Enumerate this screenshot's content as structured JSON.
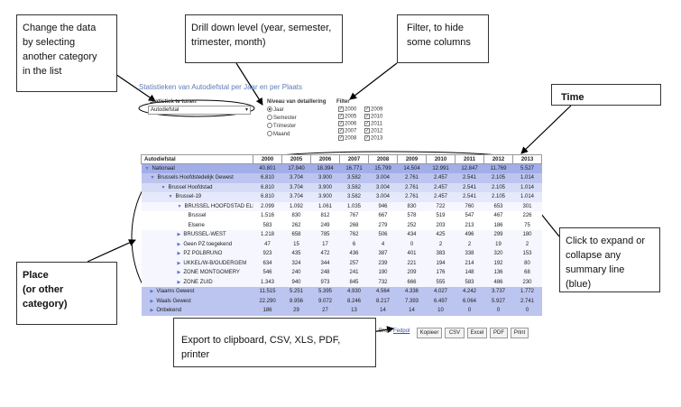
{
  "callouts": {
    "change_data": [
      "Change the data",
      "by selecting",
      "another category",
      "in the list"
    ],
    "drill_down": [
      "Drill down level (year, semester,",
      "trimester, month)"
    ],
    "filter": [
      "Filter, to hide",
      "some columns"
    ],
    "time": "Time",
    "expand": [
      "Click to expand or",
      "collapse any",
      "summary line",
      "(blue)"
    ],
    "place": [
      "Place",
      "(or other",
      "category)"
    ],
    "export": "Export to clipboard, CSV, XLS, PDF, printer"
  },
  "app": {
    "title": "Statistieken van Autodiefstal per Jaar en per Plaats",
    "stat_label": "Statistiek te tonen",
    "stat_value": "Autodiefstal",
    "level_label": "Niveau van detaillering",
    "levels": [
      {
        "label": "Jaar",
        "checked": true
      },
      {
        "label": "Semester",
        "checked": false
      },
      {
        "label": "Trimester",
        "checked": false
      },
      {
        "label": "Maand",
        "checked": false
      }
    ],
    "filter_label": "Filter",
    "filters": [
      {
        "year": "2000",
        "checked": true
      },
      {
        "year": "2009",
        "checked": true
      },
      {
        "year": "2005",
        "checked": true
      },
      {
        "year": "2010",
        "checked": true
      },
      {
        "year": "2006",
        "checked": true
      },
      {
        "year": "2011",
        "checked": true
      },
      {
        "year": "2007",
        "checked": true
      },
      {
        "year": "2012",
        "checked": true
      },
      {
        "year": "2008",
        "checked": true
      },
      {
        "year": "2013",
        "checked": true
      }
    ]
  },
  "table": {
    "header_first": "Autodiefstal",
    "years": [
      "2000",
      "2005",
      "2006",
      "2007",
      "2008",
      "2009",
      "2010",
      "2011",
      "2012",
      "2013"
    ],
    "rows": [
      {
        "label": "Nationaal",
        "level": 0,
        "icon": "collapse",
        "values": [
          "40.801",
          "17.940",
          "18.394",
          "16.771",
          "15.799",
          "14.504",
          "12.991",
          "12.847",
          "11.769",
          "5.527"
        ]
      },
      {
        "label": "Brussels Hoofdstedelijk Gewest",
        "level": 1,
        "icon": "collapse",
        "values": [
          "6.810",
          "3.704",
          "3.900",
          "3.582",
          "3.004",
          "2.761",
          "2.457",
          "2.541",
          "2.105",
          "1.014"
        ]
      },
      {
        "label": "Brussel Hoofdstad",
        "level": 2,
        "icon": "collapse",
        "values": [
          "6.810",
          "3.704",
          "3.900",
          "3.582",
          "3.004",
          "2.761",
          "2.457",
          "2.541",
          "2.105",
          "1.014"
        ]
      },
      {
        "label": "Brussel-19",
        "level": 3,
        "icon": "collapse",
        "values": [
          "6.810",
          "3.704",
          "3.900",
          "3.582",
          "3.004",
          "2.761",
          "2.457",
          "2.541",
          "2.105",
          "1.014"
        ]
      },
      {
        "label": "BRUSSEL HOOFDSTAD ELSENE",
        "level": 4,
        "icon": "collapse",
        "values": [
          "2.099",
          "1.092",
          "1.061",
          "1.035",
          "946",
          "830",
          "722",
          "760",
          "653",
          "301"
        ]
      },
      {
        "label": "Brussel",
        "level": 5,
        "icon": "",
        "values": [
          "1.516",
          "830",
          "812",
          "767",
          "667",
          "578",
          "519",
          "547",
          "467",
          "226"
        ]
      },
      {
        "label": "Elsene",
        "level": 5,
        "icon": "",
        "values": [
          "583",
          "262",
          "249",
          "268",
          "279",
          "252",
          "203",
          "213",
          "186",
          "75"
        ]
      },
      {
        "label": "BRUSSEL-WEST",
        "level": 4,
        "icon": "expand",
        "values": [
          "1.218",
          "658",
          "785",
          "762",
          "506",
          "434",
          "425",
          "496",
          "299",
          "180"
        ]
      },
      {
        "label": "Geen PZ toegekend",
        "level": 4,
        "icon": "expand",
        "values": [
          "47",
          "15",
          "17",
          "6",
          "4",
          "0",
          "2",
          "2",
          "19",
          "2"
        ]
      },
      {
        "label": "PZ POLBRUNO",
        "level": 4,
        "icon": "expand",
        "values": [
          "923",
          "435",
          "472",
          "436",
          "387",
          "401",
          "383",
          "338",
          "320",
          "153"
        ]
      },
      {
        "label": "UKKEL/W-B/OUDERGEM",
        "level": 4,
        "icon": "expand",
        "values": [
          "634",
          "324",
          "344",
          "257",
          "239",
          "221",
          "194",
          "214",
          "192",
          "80"
        ]
      },
      {
        "label": "ZONE MONTGOMERY",
        "level": 4,
        "icon": "expand",
        "values": [
          "546",
          "240",
          "248",
          "241",
          "190",
          "209",
          "176",
          "148",
          "136",
          "68"
        ]
      },
      {
        "label": "ZONE ZUID",
        "level": 4,
        "icon": "expand",
        "values": [
          "1.343",
          "940",
          "973",
          "845",
          "732",
          "666",
          "555",
          "583",
          "486",
          "230"
        ]
      },
      {
        "label": "Vlaams Gewest",
        "level": 1,
        "icon": "expand",
        "values": [
          "11.515",
          "5.251",
          "5.395",
          "4.930",
          "4.564",
          "4.336",
          "4.027",
          "4.242",
          "3.737",
          "1.772"
        ]
      },
      {
        "label": "Waals Gewest",
        "level": 1,
        "icon": "expand",
        "values": [
          "22.290",
          "8.956",
          "9.072",
          "8.246",
          "8.217",
          "7.393",
          "6.497",
          "6.064",
          "5.927",
          "2.741"
        ]
      },
      {
        "label": "Onbekend",
        "level": 1,
        "icon": "expand",
        "values": [
          "186",
          "29",
          "27",
          "13",
          "14",
          "14",
          "10",
          "0",
          "0",
          "0"
        ]
      }
    ]
  },
  "footer": {
    "source_prefix": "Bron:",
    "source_link": "Fedpol",
    "buttons": [
      "Kopieer",
      "CSV",
      "Excel",
      "PDF",
      "Print"
    ]
  }
}
